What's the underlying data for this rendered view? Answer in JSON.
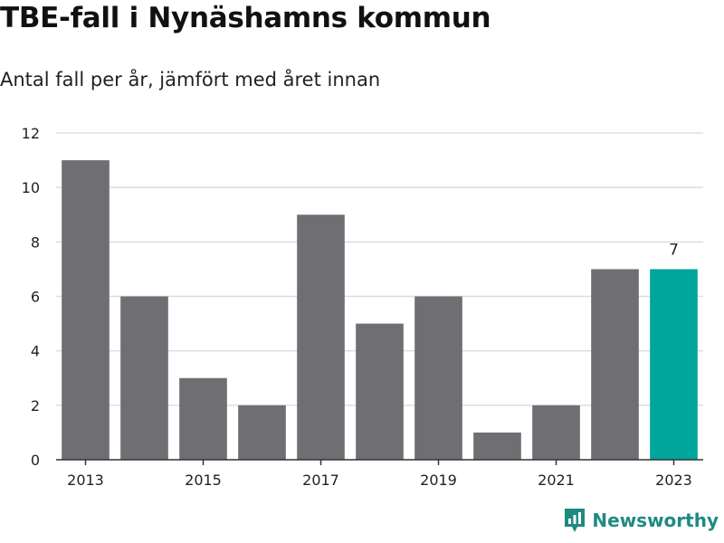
{
  "header": {
    "title": "TBE-fall i Nynäshamns kommun",
    "subtitle": "Antal fall per år, jämfört med året innan"
  },
  "brand": {
    "name": "Newsworthy",
    "icon": "newsworthy-logo-icon",
    "color": "#1f8a82"
  },
  "colors": {
    "bar": "#6f6e73",
    "highlight": "#00a59b",
    "grid": "#dddddd",
    "axis": "#333333"
  },
  "chart_data": {
    "type": "bar",
    "categories": [
      "2013",
      "2014",
      "2015",
      "2016",
      "2017",
      "2018",
      "2019",
      "2020",
      "2021",
      "2022",
      "2023"
    ],
    "values": [
      11,
      6,
      3,
      2,
      9,
      5,
      6,
      1,
      2,
      7,
      7
    ],
    "highlight_index": 10,
    "data_labels": [
      {
        "category": "2023",
        "label": "7"
      }
    ],
    "x_tick_labels": [
      "2013",
      "2015",
      "2017",
      "2019",
      "2021",
      "2023"
    ],
    "y_ticks": [
      0,
      2,
      4,
      6,
      8,
      10,
      12
    ],
    "ylim": [
      0,
      12
    ],
    "grid": true,
    "legend": "none",
    "title": "TBE-fall i Nynäshamns kommun",
    "subtitle": "Antal fall per år, jämfört med året innan",
    "xlabel": "",
    "ylabel": ""
  }
}
